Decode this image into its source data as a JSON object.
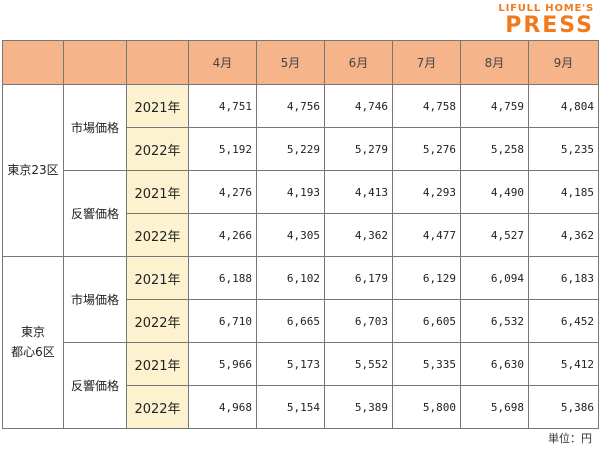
{
  "logo": {
    "line1": "LIFULL HOME'S",
    "line2": "PRESS"
  },
  "months": [
    "4月",
    "5月",
    "6月",
    "7月",
    "8月",
    "9月"
  ],
  "regions": [
    {
      "name_line1": "東京23区",
      "name_line2": "",
      "groups": [
        {
          "label": "市場価格",
          "rows": [
            {
              "year": "2021年",
              "values": [
                "4,751",
                "4,756",
                "4,746",
                "4,758",
                "4,759",
                "4,804"
              ]
            },
            {
              "year": "2022年",
              "values": [
                "5,192",
                "5,229",
                "5,279",
                "5,276",
                "5,258",
                "5,235"
              ]
            }
          ]
        },
        {
          "label": "反響価格",
          "rows": [
            {
              "year": "2021年",
              "values": [
                "4,276",
                "4,193",
                "4,413",
                "4,293",
                "4,490",
                "4,185"
              ]
            },
            {
              "year": "2022年",
              "values": [
                "4,266",
                "4,305",
                "4,362",
                "4,477",
                "4,527",
                "4,362"
              ]
            }
          ]
        }
      ]
    },
    {
      "name_line1": "東京",
      "name_line2": "都心6区",
      "groups": [
        {
          "label": "市場価格",
          "rows": [
            {
              "year": "2021年",
              "values": [
                "6,188",
                "6,102",
                "6,179",
                "6,129",
                "6,094",
                "6,183"
              ]
            },
            {
              "year": "2022年",
              "values": [
                "6,710",
                "6,665",
                "6,703",
                "6,605",
                "6,532",
                "6,452"
              ]
            }
          ]
        },
        {
          "label": "反響価格",
          "rows": [
            {
              "year": "2021年",
              "values": [
                "5,966",
                "5,173",
                "5,552",
                "5,335",
                "6,630",
                "5,412"
              ]
            },
            {
              "year": "2022年",
              "values": [
                "4,968",
                "5,154",
                "5,389",
                "5,800",
                "5,698",
                "5,386"
              ]
            }
          ]
        }
      ]
    }
  ],
  "unit_label": "単位：円",
  "colors": {
    "header_bg": "#f6b48a",
    "year_bg": "#fdf2cf",
    "logo": "#f07a1e"
  }
}
